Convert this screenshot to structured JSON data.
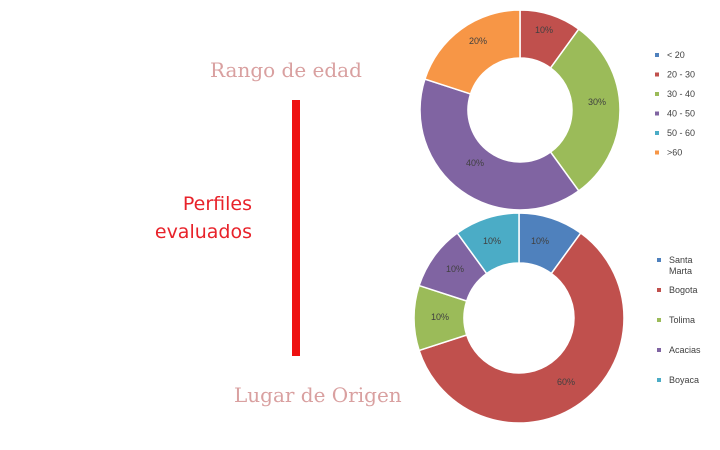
{
  "titles": {
    "age": "Rango de edad",
    "profiles_line1": "Perfiles",
    "profiles_line2": "evaluados",
    "origin": "Lugar de Origen"
  },
  "colors": {
    "titles_light": "#d9a0a0",
    "profiles_red": "#e8222a",
    "divider_red": "#ee1111"
  },
  "chart_data": [
    {
      "type": "pie",
      "subtype": "donut",
      "title": "Rango de edad",
      "categories": [
        "< 20",
        "20 - 30",
        "30 - 40",
        "40 - 50",
        "50 - 60",
        ">60"
      ],
      "values": [
        0,
        10,
        30,
        40,
        0,
        20
      ],
      "value_labels": [
        "",
        "10%",
        "30%",
        "40%",
        "",
        "20%"
      ],
      "colors": [
        "#4f81bd",
        "#c0504d",
        "#9bbb59",
        "#8064a2",
        "#4bacc6",
        "#f79646"
      ],
      "legend": "right"
    },
    {
      "type": "pie",
      "subtype": "donut",
      "title": "Lugar de Origen",
      "categories": [
        "Santa Marta",
        "Bogota",
        "Tolima",
        "Acacias",
        "Boyaca"
      ],
      "values": [
        10,
        60,
        10,
        10,
        10
      ],
      "value_labels": [
        "10%",
        "60%",
        "10%",
        "10%",
        "10%"
      ],
      "colors": [
        "#4f81bd",
        "#c0504d",
        "#9bbb59",
        "#8064a2",
        "#4bacc6"
      ],
      "legend": "right"
    }
  ]
}
